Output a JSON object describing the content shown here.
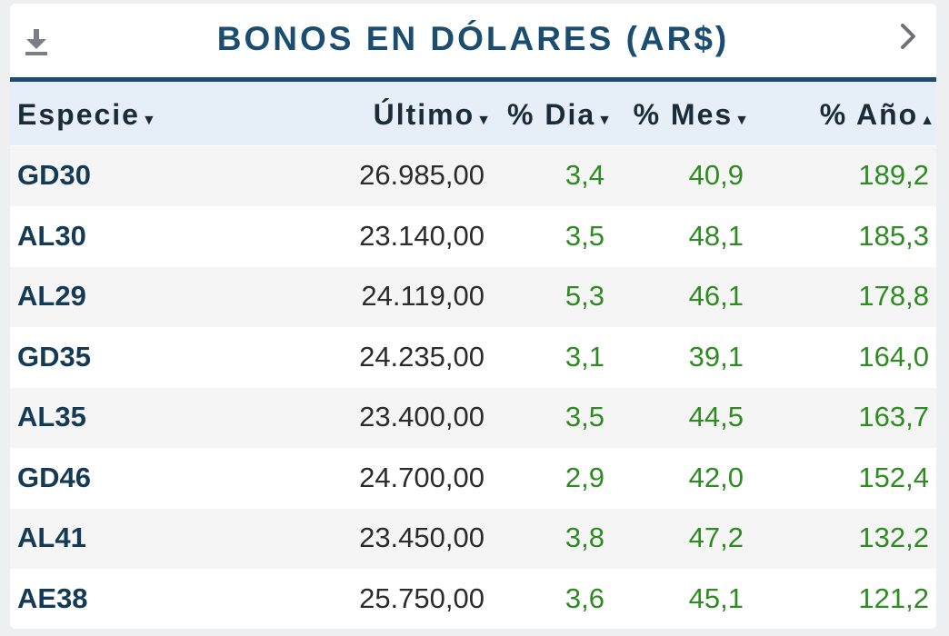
{
  "widget": {
    "title": "BONOS EN DÓLARES (AR$)",
    "download_icon": "download-icon",
    "next_icon": "chevron-right-icon"
  },
  "columns": [
    {
      "label": "Especie",
      "sort": "▼"
    },
    {
      "label": "Último",
      "sort": "▼"
    },
    {
      "label": "% Dia",
      "sort": "▼"
    },
    {
      "label": "% Mes",
      "sort": "▼"
    },
    {
      "label": "% Año",
      "sort": "▲"
    }
  ],
  "rows": [
    {
      "especie": "GD30",
      "ultimo": "26.985,00",
      "dia": "3,4",
      "mes": "40,9",
      "anio": "189,2"
    },
    {
      "especie": "AL30",
      "ultimo": "23.140,00",
      "dia": "3,5",
      "mes": "48,1",
      "anio": "185,3"
    },
    {
      "especie": "AL29",
      "ultimo": "24.119,00",
      "dia": "5,3",
      "mes": "46,1",
      "anio": "178,8"
    },
    {
      "especie": "GD35",
      "ultimo": "24.235,00",
      "dia": "3,1",
      "mes": "39,1",
      "anio": "164,0"
    },
    {
      "especie": "AL35",
      "ultimo": "23.400,00",
      "dia": "3,5",
      "mes": "44,5",
      "anio": "163,7"
    },
    {
      "especie": "GD46",
      "ultimo": "24.700,00",
      "dia": "2,9",
      "mes": "42,0",
      "anio": "152,4"
    },
    {
      "especie": "AL41",
      "ultimo": "23.450,00",
      "dia": "3,8",
      "mes": "47,2",
      "anio": "132,2"
    },
    {
      "especie": "AE38",
      "ultimo": "25.750,00",
      "dia": "3,6",
      "mes": "45,1",
      "anio": "121,2"
    }
  ],
  "colors": {
    "title": "#1a4d70",
    "header_bg": "#e6eff7",
    "positive": "#2e8b21",
    "ticker": "#153a55"
  }
}
